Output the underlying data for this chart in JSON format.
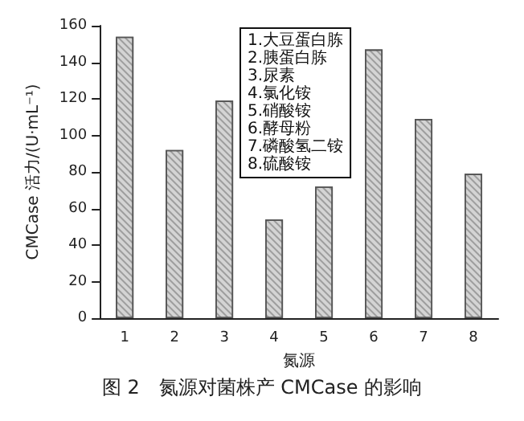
{
  "chart_data": {
    "type": "bar",
    "title": "图 2　氮源对菌株产 CMCase 的影响",
    "xlabel": "氮源",
    "ylabel": "CMCase 活力/(U·mL⁻¹)",
    "categories": [
      "1",
      "2",
      "3",
      "4",
      "5",
      "6",
      "7",
      "8"
    ],
    "values": [
      154,
      92,
      119,
      54,
      72,
      147,
      109,
      79
    ],
    "color": "#d4d4d4",
    "ylim": [
      0,
      160
    ],
    "yticks": [
      0,
      20,
      40,
      60,
      80,
      100,
      120,
      140,
      160
    ],
    "grid": false,
    "annotations": [
      "1.大豆蛋白胨",
      "2.胰蛋白胨",
      "3.尿素",
      "4.氯化铵",
      "5.硝酸铵",
      "6.酵母粉",
      "7.磷酸氢二铵",
      "8.硫酸铵"
    ]
  }
}
